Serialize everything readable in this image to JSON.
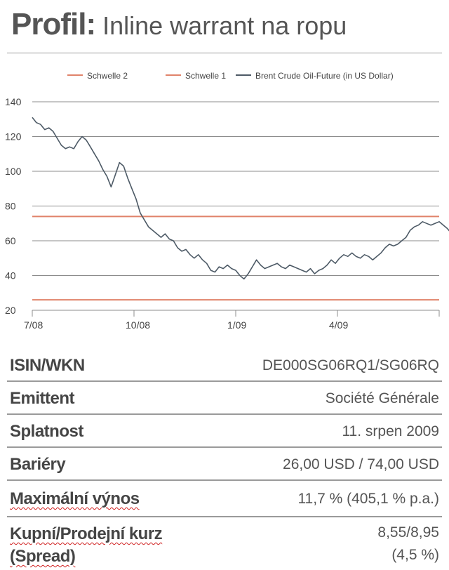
{
  "header": {
    "title_bold": "Profil:",
    "title_rest": "Inline warrant na ropu"
  },
  "chart_data": {
    "type": "line",
    "series": [
      {
        "name": "Brent Crude Oil-Future (in US Dollar)",
        "color": "#4d5a66",
        "points": [
          [
            0,
            131
          ],
          [
            2,
            128
          ],
          [
            4,
            127
          ],
          [
            6,
            124
          ],
          [
            8,
            125
          ],
          [
            10,
            123
          ],
          [
            12,
            119
          ],
          [
            14,
            115
          ],
          [
            16,
            113
          ],
          [
            18,
            114
          ],
          [
            20,
            113
          ],
          [
            22,
            117
          ],
          [
            24,
            120
          ],
          [
            26,
            118
          ],
          [
            28,
            114
          ],
          [
            30,
            110
          ],
          [
            32,
            106
          ],
          [
            34,
            101
          ],
          [
            36,
            97
          ],
          [
            38,
            91
          ],
          [
            40,
            98
          ],
          [
            42,
            105
          ],
          [
            44,
            103
          ],
          [
            46,
            96
          ],
          [
            48,
            90
          ],
          [
            50,
            84
          ],
          [
            52,
            76
          ],
          [
            54,
            72
          ],
          [
            56,
            68
          ],
          [
            58,
            66
          ],
          [
            60,
            64
          ],
          [
            62,
            62
          ],
          [
            64,
            64
          ],
          [
            66,
            61
          ],
          [
            68,
            60
          ],
          [
            70,
            56
          ],
          [
            72,
            54
          ],
          [
            74,
            55
          ],
          [
            76,
            52
          ],
          [
            78,
            50
          ],
          [
            80,
            52
          ],
          [
            82,
            49
          ],
          [
            84,
            47
          ],
          [
            86,
            43
          ],
          [
            88,
            42
          ],
          [
            90,
            45
          ],
          [
            92,
            44
          ],
          [
            94,
            46
          ],
          [
            96,
            44
          ],
          [
            98,
            43
          ],
          [
            100,
            40
          ],
          [
            102,
            38
          ],
          [
            104,
            41
          ],
          [
            106,
            45
          ],
          [
            108,
            49
          ],
          [
            110,
            46
          ],
          [
            112,
            44
          ],
          [
            114,
            45
          ],
          [
            116,
            46
          ],
          [
            118,
            47
          ],
          [
            120,
            45
          ],
          [
            122,
            44
          ],
          [
            124,
            46
          ],
          [
            126,
            45
          ],
          [
            128,
            44
          ],
          [
            130,
            43
          ],
          [
            132,
            42
          ],
          [
            134,
            44
          ],
          [
            136,
            41
          ],
          [
            138,
            43
          ],
          [
            140,
            44
          ],
          [
            142,
            46
          ],
          [
            144,
            49
          ],
          [
            146,
            47
          ],
          [
            148,
            50
          ],
          [
            150,
            52
          ],
          [
            152,
            51
          ],
          [
            154,
            53
          ],
          [
            156,
            51
          ],
          [
            158,
            50
          ],
          [
            160,
            52
          ],
          [
            162,
            51
          ],
          [
            164,
            49
          ],
          [
            166,
            51
          ],
          [
            168,
            53
          ],
          [
            170,
            56
          ],
          [
            172,
            58
          ],
          [
            174,
            57
          ],
          [
            176,
            58
          ],
          [
            178,
            60
          ],
          [
            180,
            62
          ],
          [
            182,
            66
          ],
          [
            184,
            68
          ],
          [
            186,
            69
          ],
          [
            188,
            71
          ],
          [
            190,
            70
          ],
          [
            192,
            69
          ],
          [
            194,
            70
          ],
          [
            196,
            71
          ],
          [
            198,
            69
          ],
          [
            200,
            67
          ],
          [
            202,
            64
          ],
          [
            204,
            62
          ],
          [
            206,
            61
          ],
          [
            208,
            62
          ]
        ]
      },
      {
        "name": "Schwelle 2",
        "color": "#e0836a",
        "constant": 26
      },
      {
        "name": "Schwelle 1",
        "color": "#e0836a",
        "constant": 74
      }
    ],
    "x_ticks": [
      {
        "x": 0,
        "label": "7/08"
      },
      {
        "x": 49,
        "label": "10/08"
      },
      {
        "x": 98,
        "label": "1/09"
      },
      {
        "x": 147,
        "label": "4/09"
      }
    ],
    "xlim": [
      0,
      196
    ],
    "ylim": [
      20,
      140
    ],
    "y_ticks": [
      "20",
      "40",
      "60",
      "80",
      "100",
      "120",
      "140"
    ],
    "grid": true,
    "legend": "top-right",
    "legend_order": [
      "Schwelle 2",
      "Schwelle 1",
      "Brent Crude Oil-Future (in US Dollar)"
    ]
  },
  "table": {
    "rows": [
      {
        "label": "ISIN/WKN",
        "value": "DE000SG06RQ1/SG06RQ"
      },
      {
        "label": "Emittent",
        "value": "Société Générale"
      },
      {
        "label": "Splatnost",
        "value": "11. srpen 2009"
      },
      {
        "label": "Bariéry",
        "value": "26,00 USD / 74,00 USD"
      },
      {
        "label": "Maximální výnos",
        "value": "11,7 % (405,1 % p.a.)"
      },
      {
        "label": "Kupní/Prodejní kurz",
        "label2": "(Spread)",
        "value": "8,55/8,95",
        "value2": "(4,5 %)"
      }
    ]
  }
}
